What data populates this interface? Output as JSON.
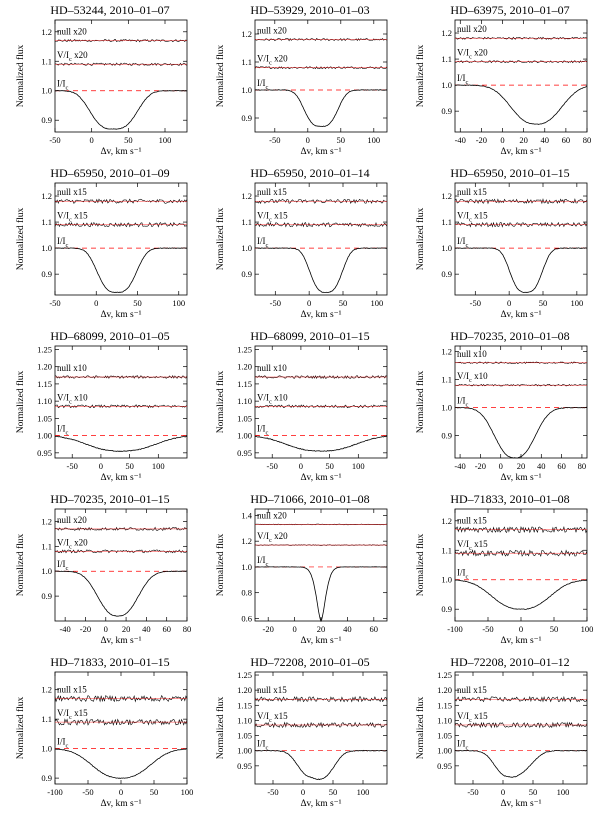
{
  "figure": {
    "ylabel": "Normalized flux",
    "xlabel": "Δv, km s⁻¹",
    "line_color": "#000000",
    "null_color": "#000000",
    "ref_color": "#ff0000",
    "fit_color": "#2ca02c"
  },
  "chart_data": [
    {
      "type": "line",
      "title": "HD–53244, 2010–01–07",
      "xlim": [
        -50,
        130
      ],
      "xticks": [
        -50,
        0,
        50,
        100
      ],
      "ylim": [
        0.86,
        1.24
      ],
      "yticks": [
        "0.9",
        "1.0",
        "1.1",
        "1.2"
      ],
      "profile": {
        "center": 30,
        "depth": 0.13,
        "halfwidth": 38,
        "sharpness": 3
      },
      "null_label": "null x20",
      "null_level": 1.17,
      "vi_label": "V/I_c x20",
      "vi_level": 1.09,
      "ic_label": "I/I_c",
      "continuum": 1.0,
      "noise": 0.004
    },
    {
      "type": "line",
      "title": "HD–53929, 2010–01–03",
      "xlim": [
        -80,
        120
      ],
      "xticks": [
        -50,
        0,
        50,
        100
      ],
      "ylim": [
        0.85,
        1.25
      ],
      "yticks": [
        "0.9",
        "1.0",
        "1.1",
        "1.2"
      ],
      "profile": {
        "center": 20,
        "depth": 0.13,
        "halfwidth": 30,
        "sharpness": 3
      },
      "null_label": "null x20",
      "null_level": 1.18,
      "vi_label": "V/I_c x20",
      "vi_level": 1.08,
      "ic_label": "I/I_c",
      "continuum": 1.0,
      "noise": 0.004
    },
    {
      "type": "line",
      "title": "HD–63975, 2010–01–07",
      "xlim": [
        -45,
        80
      ],
      "xticks": [
        -40,
        -20,
        0,
        20,
        40,
        60,
        80
      ],
      "ylim": [
        0.82,
        1.25
      ],
      "yticks": [
        "0.9",
        "1.0",
        "1.1",
        "1.2"
      ],
      "profile": {
        "center": 32,
        "depth": 0.15,
        "halfwidth": 30,
        "sharpness": 2.5
      },
      "null_label": "null x20",
      "null_level": 1.18,
      "vi_label": "V/I_c x20",
      "vi_level": 1.09,
      "ic_label": "I/I_c",
      "continuum": 1.0,
      "noise": 0.004
    },
    {
      "type": "line",
      "title": "HD–65950, 2010–01–09",
      "xlim": [
        -50,
        110
      ],
      "xticks": [
        -50,
        0,
        50,
        100
      ],
      "ylim": [
        0.82,
        1.25
      ],
      "yticks": [
        "0.9",
        "1.0",
        "1.1",
        "1.2"
      ],
      "profile": {
        "center": 25,
        "depth": 0.17,
        "halfwidth": 28,
        "sharpness": 3
      },
      "null_label": "null x15",
      "null_level": 1.18,
      "vi_label": "V/I_c x15",
      "vi_level": 1.09,
      "ic_label": "I/I_c",
      "continuum": 1.0,
      "noise": 0.008
    },
    {
      "type": "line",
      "title": "HD–65950, 2010–01–14",
      "xlim": [
        -80,
        115
      ],
      "xticks": [
        -50,
        0,
        50,
        100
      ],
      "ylim": [
        0.82,
        1.25
      ],
      "yticks": [
        "0.9",
        "1.0",
        "1.1",
        "1.2"
      ],
      "profile": {
        "center": 25,
        "depth": 0.17,
        "halfwidth": 28,
        "sharpness": 3
      },
      "null_label": "null x15",
      "null_level": 1.18,
      "vi_label": "V/I_c x15",
      "vi_level": 1.09,
      "ic_label": "I/I_c",
      "continuum": 1.0,
      "noise": 0.008
    },
    {
      "type": "line",
      "title": "HD–65950, 2010–01–15",
      "xlim": [
        -80,
        115
      ],
      "xticks": [
        -50,
        0,
        50,
        100
      ],
      "ylim": [
        0.82,
        1.25
      ],
      "yticks": [
        "0.9",
        "1.0",
        "1.1",
        "1.2"
      ],
      "profile": {
        "center": 25,
        "depth": 0.17,
        "halfwidth": 28,
        "sharpness": 3
      },
      "null_label": "null x15",
      "null_level": 1.18,
      "vi_label": "V/I_c x15",
      "vi_level": 1.09,
      "ic_label": "I/I_c",
      "continuum": 1.0,
      "noise": 0.008
    },
    {
      "type": "line",
      "title": "HD–68099, 2010–01–05",
      "xlim": [
        -80,
        150
      ],
      "xticks": [
        -50,
        0,
        50,
        100
      ],
      "ylim": [
        0.935,
        1.26
      ],
      "yticks": [
        "0.95",
        "1.00",
        "1.05",
        "1.10",
        "1.15",
        "1.20",
        "1.25"
      ],
      "profile": {
        "center": 35,
        "depth": 0.045,
        "halfwidth": 75,
        "sharpness": 2.5
      },
      "null_label": "null x10",
      "null_level": 1.17,
      "vi_label": "V/I_c x10",
      "vi_level": 1.085,
      "ic_label": "I/I_c",
      "continuum": 1.0,
      "noise": 0.004
    },
    {
      "type": "line",
      "title": "HD–68099, 2010–01–15",
      "xlim": [
        -80,
        150
      ],
      "xticks": [
        -50,
        0,
        50,
        100
      ],
      "ylim": [
        0.935,
        1.26
      ],
      "yticks": [
        "0.95",
        "1.00",
        "1.05",
        "1.10",
        "1.15",
        "1.20",
        "1.25"
      ],
      "profile": {
        "center": 35,
        "depth": 0.045,
        "halfwidth": 75,
        "sharpness": 2.5
      },
      "null_label": "null x10",
      "null_level": 1.17,
      "vi_label": "V/I_c x10",
      "vi_level": 1.085,
      "ic_label": "I/I_c",
      "continuum": 1.0,
      "noise": 0.004
    },
    {
      "type": "line",
      "title": "HD–70235, 2010–01–08",
      "xlim": [
        -45,
        85
      ],
      "xticks": [
        -40,
        -20,
        0,
        20,
        40,
        60,
        80
      ],
      "ylim": [
        0.82,
        1.22
      ],
      "yticks": [
        "0.9",
        "1.0",
        "1.1",
        "1.2"
      ],
      "profile": {
        "center": 14,
        "depth": 0.18,
        "halfwidth": 25,
        "sharpness": 2.5
      },
      "null_label": "null x10",
      "null_level": 1.16,
      "vi_label": "V/I_c x10",
      "vi_level": 1.08,
      "ic_label": "I/I_c",
      "continuum": 1.0,
      "noise": 0.003
    },
    {
      "type": "line",
      "title": "HD–70235, 2010–01–15",
      "xlim": [
        -50,
        80
      ],
      "xticks": [
        -40,
        -20,
        0,
        20,
        40,
        60,
        80
      ],
      "ylim": [
        0.8,
        1.25
      ],
      "yticks": [
        "0.9",
        "1.0",
        "1.1",
        "1.2"
      ],
      "profile": {
        "center": 12,
        "depth": 0.18,
        "halfwidth": 25,
        "sharpness": 2.5
      },
      "null_label": "null x20",
      "null_level": 1.17,
      "vi_label": "V/I_c x20",
      "vi_level": 1.08,
      "ic_label": "I/I_c",
      "continuum": 1.0,
      "noise": 0.006
    },
    {
      "type": "line",
      "title": "HD–71066, 2010–01–08",
      "xlim": [
        -30,
        70
      ],
      "xticks": [
        -20,
        0,
        20,
        40,
        60
      ],
      "ylim": [
        0.58,
        1.45
      ],
      "yticks": [
        "0.6",
        "0.8",
        "1.0",
        "1.2",
        "1.4"
      ],
      "profile": {
        "center": 20,
        "depth": 0.42,
        "halfwidth": 5,
        "sharpness": 1.6
      },
      "null_label": "null x20",
      "null_level": 1.33,
      "vi_label": "V/I_c x20",
      "vi_level": 1.17,
      "ic_label": "I/I_c",
      "continuum": 1.0,
      "noise": 0.003
    },
    {
      "type": "line",
      "title": "HD–71833, 2010–01–08",
      "xlim": [
        -100,
        100
      ],
      "xticks": [
        -100,
        -50,
        0,
        50,
        100
      ],
      "ylim": [
        0.86,
        1.24
      ],
      "yticks": [
        "0.9",
        "1.0",
        "1.1",
        "1.2"
      ],
      "profile": {
        "center": 0,
        "depth": 0.1,
        "halfwidth": 55,
        "sharpness": 2.5
      },
      "null_label": "null x15",
      "null_level": 1.17,
      "vi_label": "V/I_c x15",
      "vi_level": 1.09,
      "ic_label": "I/I_c",
      "continuum": 1.0,
      "noise": 0.01
    },
    {
      "type": "line",
      "title": "HD–71833, 2010–01–15",
      "xlim": [
        -100,
        100
      ],
      "xticks": [
        -100,
        -50,
        0,
        50,
        100
      ],
      "ylim": [
        0.88,
        1.26
      ],
      "yticks": [
        "0.9",
        "1.0",
        "1.1",
        "1.2"
      ],
      "profile": {
        "center": 0,
        "depth": 0.1,
        "halfwidth": 55,
        "sharpness": 2.5
      },
      "null_label": "null x15",
      "null_level": 1.17,
      "vi_label": "V/I_c x15",
      "vi_level": 1.09,
      "ic_label": "I/I_c",
      "continuum": 1.0,
      "noise": 0.01
    },
    {
      "type": "line",
      "title": "HD–72208, 2010–01–05",
      "xlim": [
        -80,
        140
      ],
      "xticks": [
        -50,
        0,
        50,
        100
      ],
      "ylim": [
        0.89,
        1.26
      ],
      "yticks": [
        "0.95",
        "1.00",
        "1.05",
        "1.10",
        "1.15",
        "1.20",
        "1.25"
      ],
      "profile": {
        "center": 15,
        "depth": 0.085,
        "halfwidth": 30,
        "sharpness": 2.5,
        "secondary": {
          "center": 45,
          "depth": 0.04,
          "halfwidth": 20
        }
      },
      "null_label": "null x15",
      "null_level": 1.17,
      "vi_label": "V/I_c x15",
      "vi_level": 1.085,
      "ic_label": "I/I_c",
      "continuum": 1.0,
      "noise": 0.008
    },
    {
      "type": "line",
      "title": "HD–72208, 2010–01–12",
      "xlim": [
        -80,
        140
      ],
      "xticks": [
        -50,
        0,
        50,
        100
      ],
      "ylim": [
        0.89,
        1.26
      ],
      "yticks": [
        "0.95",
        "1.00",
        "1.05",
        "1.10",
        "1.15",
        "1.20",
        "1.25"
      ],
      "profile": {
        "center": 10,
        "depth": 0.085,
        "halfwidth": 30,
        "sharpness": 2.5,
        "secondary": {
          "center": 45,
          "depth": 0.03,
          "halfwidth": 20
        }
      },
      "null_label": "null x15",
      "null_level": 1.17,
      "vi_label": "V/I_c x15",
      "vi_level": 1.085,
      "ic_label": "I/I_c",
      "continuum": 1.0,
      "noise": 0.008
    }
  ]
}
